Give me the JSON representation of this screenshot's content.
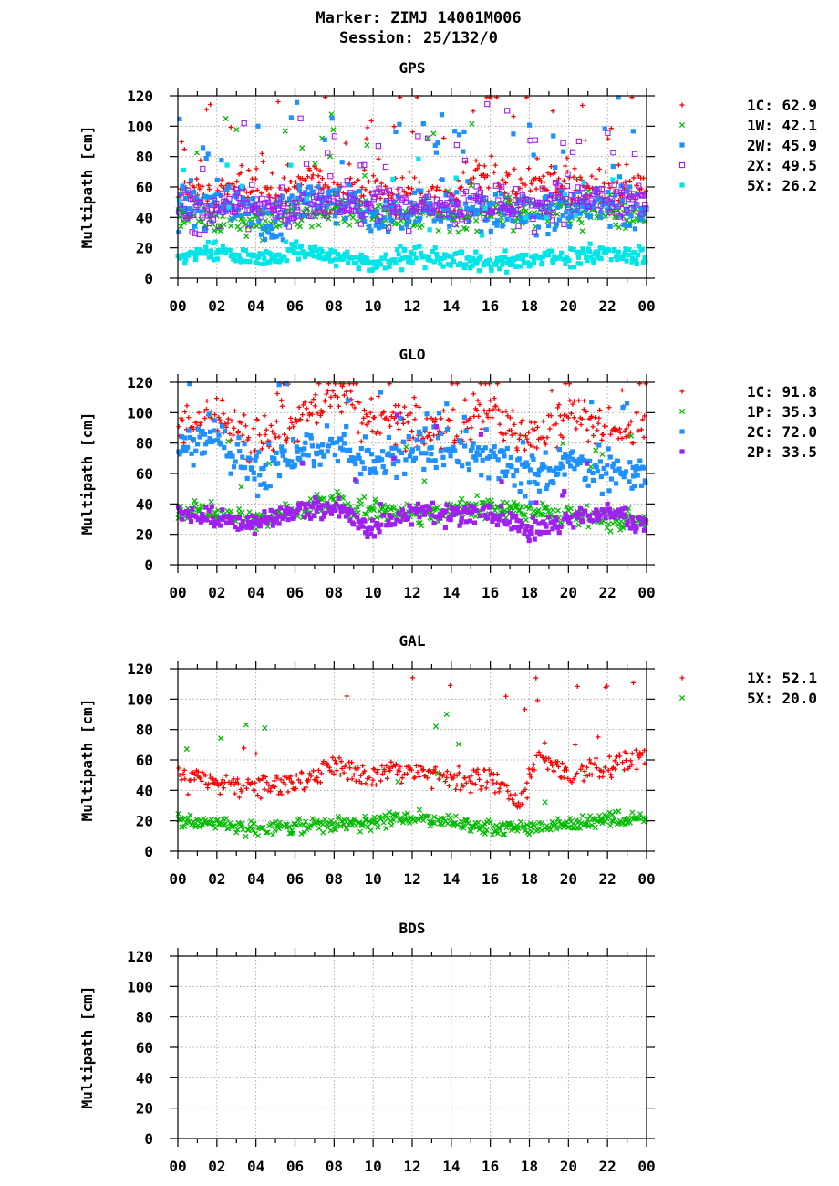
{
  "header": {
    "marker": "Marker: ZIMJ 14001M006",
    "session": "Session: 25/132/0"
  },
  "chart_data": [
    {
      "type": "scatter",
      "title": "GPS",
      "ylabel": "Multipath [cm]",
      "xlabel": "",
      "ylim": [
        0,
        120
      ],
      "xlim": [
        0,
        24
      ],
      "x_tick_labels": [
        "00",
        "02",
        "04",
        "06",
        "08",
        "10",
        "12",
        "14",
        "16",
        "18",
        "20",
        "22",
        "00"
      ],
      "y_tick_labels": [
        "0",
        "20",
        "40",
        "60",
        "80",
        "100",
        "120"
      ],
      "grid": true,
      "legend_placement": "right",
      "series": [
        {
          "name": "1C",
          "legend": "1C: 62.9",
          "color": "#ff0000",
          "marker": "plus",
          "level": 57,
          "amp": 13,
          "spikes": 0.1,
          "seed": 11,
          "profile": [
            [
              0,
              58
            ],
            [
              1,
              58
            ],
            [
              2,
              55
            ],
            [
              3,
              60
            ],
            [
              4,
              56
            ],
            [
              5,
              52
            ],
            [
              6,
              60
            ],
            [
              7,
              65
            ],
            [
              8,
              52
            ],
            [
              9,
              55
            ],
            [
              10,
              62
            ],
            [
              11,
              55
            ],
            [
              12,
              60
            ],
            [
              13,
              52
            ],
            [
              14,
              55
            ],
            [
              15,
              68
            ],
            [
              16,
              70
            ],
            [
              17,
              55
            ],
            [
              18,
              62
            ],
            [
              19,
              65
            ],
            [
              20,
              60
            ],
            [
              21,
              58
            ],
            [
              22,
              55
            ],
            [
              23,
              60
            ],
            [
              24,
              60
            ]
          ]
        },
        {
          "name": "1W",
          "legend": "1W: 42.1",
          "color": "#00bb00",
          "marker": "cross",
          "level": 42,
          "amp": 10,
          "spikes": 0.04,
          "seed": 23,
          "profile": [
            [
              0,
              42
            ],
            [
              4,
              38
            ],
            [
              8,
              44
            ],
            [
              12,
              40
            ],
            [
              16,
              42
            ],
            [
              20,
              45
            ],
            [
              24,
              42
            ]
          ]
        },
        {
          "name": "2W",
          "legend": "2W: 45.9",
          "color": "#1e90ff",
          "marker": "square",
          "level": 46,
          "amp": 14,
          "spikes": 0.08,
          "seed": 37,
          "profile": [
            [
              0,
              48
            ],
            [
              3,
              50
            ],
            [
              5,
              35
            ],
            [
              7,
              55
            ],
            [
              9,
              45
            ],
            [
              11,
              42
            ],
            [
              13,
              48
            ],
            [
              15,
              45
            ],
            [
              17,
              42
            ],
            [
              19,
              45
            ],
            [
              21,
              52
            ],
            [
              24,
              46
            ]
          ]
        },
        {
          "name": "2X",
          "legend": "2X: 49.5",
          "color": "#a020f0",
          "marker": "square-open",
          "level": 48,
          "amp": 12,
          "spikes": 0.1,
          "seed": 41,
          "profile": [
            [
              0,
              40
            ],
            [
              3,
              48
            ],
            [
              6,
              45
            ],
            [
              9,
              50
            ],
            [
              12,
              45
            ],
            [
              15,
              48
            ],
            [
              18,
              45
            ],
            [
              21,
              55
            ],
            [
              24,
              50
            ]
          ]
        },
        {
          "name": "5X",
          "legend": "5X: 26.2",
          "color": "#00e5e5",
          "marker": "square",
          "level": 16,
          "amp": 6,
          "spikes": 0.06,
          "seed": 53,
          "profile": [
            [
              0,
              15
            ],
            [
              2,
              18
            ],
            [
              4,
              12
            ],
            [
              6,
              18
            ],
            [
              8,
              15
            ],
            [
              10,
              10
            ],
            [
              12,
              15
            ],
            [
              14,
              12
            ],
            [
              16,
              10
            ],
            [
              18,
              12
            ],
            [
              20,
              14
            ],
            [
              22,
              18
            ],
            [
              24,
              15
            ]
          ]
        }
      ]
    },
    {
      "type": "scatter",
      "title": "GLO",
      "ylabel": "Multipath [cm]",
      "xlabel": "",
      "ylim": [
        0,
        120
      ],
      "xlim": [
        0,
        24
      ],
      "x_tick_labels": [
        "00",
        "02",
        "04",
        "06",
        "08",
        "10",
        "12",
        "14",
        "16",
        "18",
        "20",
        "22",
        "00"
      ],
      "y_tick_labels": [
        "0",
        "20",
        "40",
        "60",
        "80",
        "100",
        "120"
      ],
      "grid": true,
      "legend_placement": "right",
      "series": [
        {
          "name": "1C",
          "legend": "1C: 91.8",
          "color": "#ff0000",
          "marker": "plus",
          "level": 88,
          "amp": 14,
          "spikes": 0.08,
          "seed": 61,
          "profile": [
            [
              0,
              90
            ],
            [
              2,
              95
            ],
            [
              4,
              80
            ],
            [
              6,
              92
            ],
            [
              8,
              110
            ],
            [
              10,
              95
            ],
            [
              12,
              90
            ],
            [
              14,
              85
            ],
            [
              16,
              105
            ],
            [
              18,
              82
            ],
            [
              20,
              100
            ],
            [
              22,
              90
            ],
            [
              24,
              88
            ]
          ]
        },
        {
          "name": "1P",
          "legend": "1P: 35.3",
          "color": "#00bb00",
          "marker": "cross",
          "level": 35,
          "amp": 7,
          "spikes": 0.03,
          "seed": 67,
          "profile": [
            [
              0,
              35
            ],
            [
              4,
              30
            ],
            [
              8,
              40
            ],
            [
              12,
              34
            ],
            [
              16,
              38
            ],
            [
              20,
              32
            ],
            [
              24,
              28
            ]
          ]
        },
        {
          "name": "2C",
          "legend": "2C: 72.0",
          "color": "#1e90ff",
          "marker": "square",
          "level": 72,
          "amp": 14,
          "spikes": 0.05,
          "seed": 71,
          "profile": [
            [
              0,
              75
            ],
            [
              2,
              85
            ],
            [
              4,
              60
            ],
            [
              6,
              70
            ],
            [
              8,
              80
            ],
            [
              10,
              65
            ],
            [
              12,
              75
            ],
            [
              14,
              80
            ],
            [
              16,
              70
            ],
            [
              18,
              58
            ],
            [
              20,
              68
            ],
            [
              22,
              62
            ],
            [
              24,
              60
            ]
          ]
        },
        {
          "name": "2P",
          "legend": "2P: 33.5",
          "color": "#a020f0",
          "marker": "square",
          "level": 32,
          "amp": 7,
          "spikes": 0.03,
          "seed": 79,
          "profile": [
            [
              0,
              38
            ],
            [
              2,
              30
            ],
            [
              4,
              28
            ],
            [
              6,
              35
            ],
            [
              8,
              38
            ],
            [
              10,
              22
            ],
            [
              12,
              35
            ],
            [
              14,
              32
            ],
            [
              16,
              35
            ],
            [
              18,
              22
            ],
            [
              20,
              30
            ],
            [
              22,
              35
            ],
            [
              24,
              28
            ]
          ]
        }
      ]
    },
    {
      "type": "scatter",
      "title": "GAL",
      "ylabel": "Multipath [cm]",
      "xlabel": "",
      "ylim": [
        0,
        120
      ],
      "xlim": [
        0,
        24
      ],
      "x_tick_labels": [
        "00",
        "02",
        "04",
        "06",
        "08",
        "10",
        "12",
        "14",
        "16",
        "18",
        "20",
        "22",
        "00"
      ],
      "y_tick_labels": [
        "0",
        "20",
        "40",
        "60",
        "80",
        "100",
        "120"
      ],
      "grid": true,
      "legend_placement": "right",
      "series": [
        {
          "name": "1X",
          "legend": "1X: 52.1",
          "color": "#ff0000",
          "marker": "plus",
          "level": 50,
          "amp": 8,
          "spikes": 0.03,
          "seed": 83,
          "profile": [
            [
              0,
              50
            ],
            [
              2,
              45
            ],
            [
              4,
              45
            ],
            [
              6,
              45
            ],
            [
              8,
              55
            ],
            [
              10,
              50
            ],
            [
              12,
              55
            ],
            [
              14,
              48
            ],
            [
              16,
              50
            ],
            [
              17.5,
              30
            ],
            [
              18.5,
              65
            ],
            [
              20,
              50
            ],
            [
              22,
              55
            ],
            [
              24,
              65
            ]
          ]
        },
        {
          "name": "5X",
          "legend": "5X: 20.0",
          "color": "#00bb00",
          "marker": "cross",
          "level": 19,
          "amp": 5,
          "spikes": 0.02,
          "seed": 89,
          "profile": [
            [
              0,
              20
            ],
            [
              2,
              18
            ],
            [
              4,
              15
            ],
            [
              6,
              16
            ],
            [
              8,
              18
            ],
            [
              10,
              20
            ],
            [
              12,
              22
            ],
            [
              14,
              20
            ],
            [
              16,
              15
            ],
            [
              18,
              15
            ],
            [
              20,
              18
            ],
            [
              22,
              20
            ],
            [
              24,
              22
            ]
          ]
        }
      ]
    },
    {
      "type": "scatter",
      "title": "BDS",
      "ylabel": "Multipath [cm]",
      "xlabel": "",
      "ylim": [
        0,
        120
      ],
      "xlim": [
        0,
        24
      ],
      "x_tick_labels": [
        "00",
        "02",
        "04",
        "06",
        "08",
        "10",
        "12",
        "14",
        "16",
        "18",
        "20",
        "22",
        "00"
      ],
      "y_tick_labels": [
        "0",
        "20",
        "40",
        "60",
        "80",
        "100",
        "120"
      ],
      "grid": true,
      "legend_placement": "right",
      "series": []
    }
  ]
}
